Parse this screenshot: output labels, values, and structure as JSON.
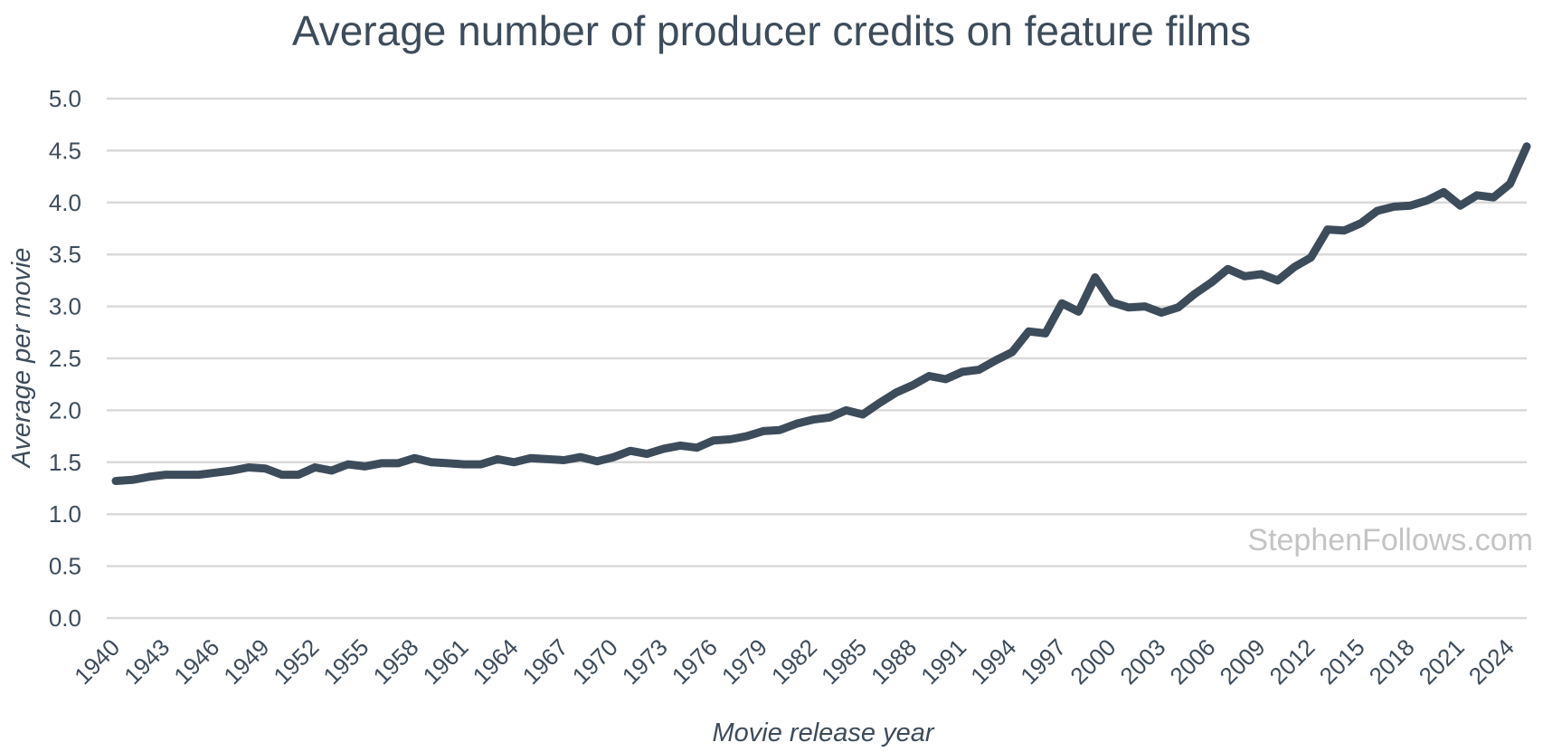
{
  "chart_data": {
    "type": "line",
    "title": "Average number of producer credits on feature films",
    "xlabel": "Movie release year",
    "ylabel": "Average per movie",
    "watermark": "StephenFollows.com",
    "ylim": [
      0,
      5
    ],
    "yticks": [
      "0.0",
      "0.5",
      "1.0",
      "1.5",
      "2.0",
      "2.5",
      "3.0",
      "3.5",
      "4.0",
      "4.5",
      "5.0"
    ],
    "xlim": [
      1940,
      2025
    ],
    "xticks": [
      "1940",
      "1943",
      "1946",
      "1949",
      "1952",
      "1955",
      "1958",
      "1961",
      "1964",
      "1967",
      "1970",
      "1973",
      "1976",
      "1979",
      "1982",
      "1985",
      "1988",
      "1991",
      "1994",
      "1997",
      "2000",
      "2003",
      "2006",
      "2009",
      "2012",
      "2015",
      "2018",
      "2021",
      "2024"
    ],
    "grid": true,
    "line_color": "#3d4c5b",
    "series": [
      {
        "x": [
          1940,
          1941,
          1942,
          1943,
          1944,
          1945,
          1946,
          1947,
          1948,
          1949,
          1950,
          1951,
          1952,
          1953,
          1954,
          1955,
          1956,
          1957,
          1958,
          1959,
          1960,
          1961,
          1962,
          1963,
          1964,
          1965,
          1966,
          1967,
          1968,
          1969,
          1970,
          1971,
          1972,
          1973,
          1974,
          1975,
          1976,
          1977,
          1978,
          1979,
          1980,
          1981,
          1982,
          1983,
          1984,
          1985,
          1986,
          1987,
          1988,
          1989,
          1990,
          1991,
          1992,
          1993,
          1994,
          1995,
          1996,
          1997,
          1998,
          1999,
          2000,
          2001,
          2002,
          2003,
          2004,
          2005,
          2006,
          2007,
          2008,
          2009,
          2010,
          2011,
          2012,
          2013,
          2014,
          2015,
          2016,
          2017,
          2018,
          2019,
          2020,
          2021,
          2022,
          2023,
          2024,
          2025
        ],
        "values": [
          1.32,
          1.33,
          1.36,
          1.38,
          1.38,
          1.38,
          1.4,
          1.42,
          1.45,
          1.44,
          1.38,
          1.38,
          1.45,
          1.42,
          1.48,
          1.46,
          1.49,
          1.49,
          1.54,
          1.5,
          1.49,
          1.48,
          1.48,
          1.53,
          1.5,
          1.54,
          1.53,
          1.52,
          1.55,
          1.51,
          1.55,
          1.61,
          1.58,
          1.63,
          1.66,
          1.64,
          1.71,
          1.72,
          1.75,
          1.8,
          1.81,
          1.87,
          1.91,
          1.93,
          2.0,
          1.96,
          2.07,
          2.17,
          2.24,
          2.33,
          2.3,
          2.37,
          2.39,
          2.48,
          2.56,
          2.76,
          2.74,
          3.03,
          2.95,
          3.28,
          3.04,
          2.99,
          3.0,
          2.94,
          2.99,
          3.12,
          3.23,
          3.36,
          3.29,
          3.31,
          3.25,
          3.38,
          3.47,
          3.74,
          3.73,
          3.8,
          3.92,
          3.96,
          3.97,
          4.02,
          4.1,
          3.97,
          4.07,
          4.05,
          4.18,
          4.54
        ]
      }
    ]
  }
}
